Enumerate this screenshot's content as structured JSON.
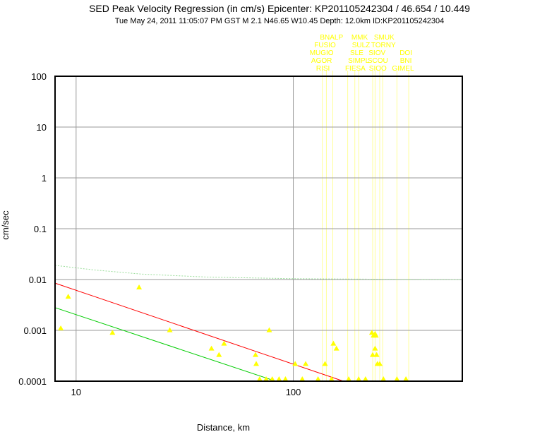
{
  "header": {
    "title": "SED Peak Velocity Regression (in cm/s) Epicenter: KP201105242304 / 46.654 / 10.449",
    "subtitle": "Tue May 24, 2011 11:05:07 PM GST   M 2.1   N46.65 W10.45   Depth: 12.0km   ID:KP201105242304"
  },
  "chart_data": {
    "type": "scatter",
    "xlabel": "Distance, km",
    "ylabel": "cm/sec",
    "xscale": "log",
    "yscale": "log",
    "xlim": [
      8,
      600
    ],
    "ylim": [
      0.0001,
      100
    ],
    "grid": true,
    "x_ticks": [
      {
        "value": 10,
        "label": "10"
      },
      {
        "value": 100,
        "label": "100"
      }
    ],
    "y_ticks": [
      {
        "value": 100,
        "label": "100"
      },
      {
        "value": 10,
        "label": "10"
      },
      {
        "value": 1,
        "label": "1"
      },
      {
        "value": 0.1,
        "label": "0.1"
      },
      {
        "value": 0.01,
        "label": "0.01"
      },
      {
        "value": 0.001,
        "label": "0.001"
      },
      {
        "value": 0.0001,
        "label": "0.0001"
      }
    ],
    "regression_lines": [
      {
        "color": "#ff0000",
        "points": [
          [
            8,
            0.0085
          ],
          [
            170,
            0.0001
          ]
        ]
      },
      {
        "color": "#00cc00",
        "points": [
          [
            8,
            0.0028
          ],
          [
            83,
            0.0001
          ]
        ]
      },
      {
        "color": "#99dd99",
        "style": "dotted",
        "points": [
          [
            8,
            0.019
          ],
          [
            12,
            0.0155
          ],
          [
            20,
            0.0128
          ],
          [
            40,
            0.0112
          ],
          [
            100,
            0.0104
          ],
          [
            300,
            0.0101
          ],
          [
            600,
            0.01
          ]
        ]
      }
    ],
    "series": [
      {
        "color": "#ffff00",
        "points": [
          {
            "x": 8.5,
            "y": 0.001
          },
          {
            "x": 9.2,
            "y": 0.0042
          },
          {
            "x": 14.7,
            "y": 0.00082
          },
          {
            "x": 19.5,
            "y": 0.0064
          },
          {
            "x": 27,
            "y": 0.00092
          },
          {
            "x": 42,
            "y": 0.0004
          },
          {
            "x": 45.5,
            "y": 0.0003
          },
          {
            "x": 48,
            "y": 0.0005
          },
          {
            "x": 67,
            "y": 0.0003
          },
          {
            "x": 67.5,
            "y": 0.0002
          },
          {
            "x": 77.5,
            "y": 0.00092
          },
          {
            "x": 102,
            "y": 0.0002
          },
          {
            "x": 114,
            "y": 0.0002
          },
          {
            "x": 140,
            "y": 0.0002
          },
          {
            "x": 153,
            "y": 0.0005
          },
          {
            "x": 158,
            "y": 0.0004
          },
          {
            "x": 230,
            "y": 0.00082
          },
          {
            "x": 234,
            "y": 0.00072
          },
          {
            "x": 238,
            "y": 0.00078
          },
          {
            "x": 240,
            "y": 0.00072
          },
          {
            "x": 232,
            "y": 0.0003
          },
          {
            "x": 238,
            "y": 0.0004
          },
          {
            "x": 242,
            "y": 0.0003
          },
          {
            "x": 244,
            "y": 0.0002
          },
          {
            "x": 250,
            "y": 0.0002
          },
          {
            "x": 70,
            "y": 0.0001
          },
          {
            "x": 75,
            "y": 0.0001
          },
          {
            "x": 80,
            "y": 0.0001
          },
          {
            "x": 86,
            "y": 0.0001
          },
          {
            "x": 92,
            "y": 0.0001
          },
          {
            "x": 110,
            "y": 0.0001
          },
          {
            "x": 130,
            "y": 0.0001
          },
          {
            "x": 150,
            "y": 0.0001
          },
          {
            "x": 180,
            "y": 0.0001
          },
          {
            "x": 200,
            "y": 0.0001
          },
          {
            "x": 215,
            "y": 0.0001
          },
          {
            "x": 260,
            "y": 0.0001
          },
          {
            "x": 300,
            "y": 0.0001
          },
          {
            "x": 330,
            "y": 0.0001
          }
        ]
      }
    ],
    "station_lines_x": [
      136,
      142,
      152,
      178,
      192,
      200,
      232,
      238,
      250,
      258,
      300,
      340
    ],
    "station_labels": [
      {
        "text": "BNALP",
        "x": 150,
        "row": 0
      },
      {
        "text": "MMK",
        "x": 202,
        "row": 0
      },
      {
        "text": "SMUK",
        "x": 262,
        "row": 0
      },
      {
        "text": "FUSIO",
        "x": 140,
        "row": 1
      },
      {
        "text": "SULZ",
        "x": 205,
        "row": 1
      },
      {
        "text": "TORNY",
        "x": 260,
        "row": 1
      },
      {
        "text": "MUGIO",
        "x": 135,
        "row": 2
      },
      {
        "text": "SLE",
        "x": 196,
        "row": 2
      },
      {
        "text": "SIOV",
        "x": 243,
        "row": 2
      },
      {
        "text": "DOI",
        "x": 330,
        "row": 2
      },
      {
        "text": "AGOR",
        "x": 135,
        "row": 3
      },
      {
        "text": "SIMPL",
        "x": 200,
        "row": 3
      },
      {
        "text": "SCOU",
        "x": 245,
        "row": 3
      },
      {
        "text": "BNI",
        "x": 330,
        "row": 3
      },
      {
        "text": "RISI",
        "x": 137,
        "row": 4
      },
      {
        "text": "FIESA",
        "x": 193,
        "row": 4
      },
      {
        "text": "SIOO",
        "x": 245,
        "row": 4
      },
      {
        "text": "GIMEL",
        "x": 320,
        "row": 4
      }
    ]
  }
}
